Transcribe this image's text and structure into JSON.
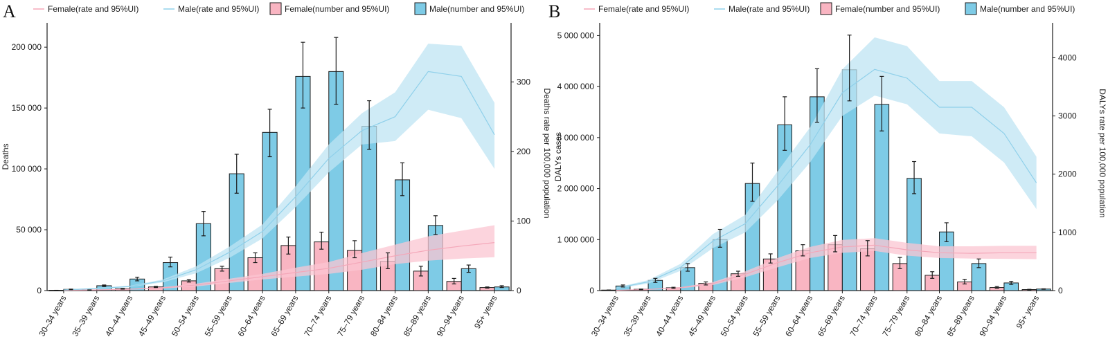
{
  "legend": [
    {
      "label": "Female(rate and 95%UI)",
      "kind": "line",
      "color": "#f4a7b9"
    },
    {
      "label": "Male(rate and 95%UI)",
      "kind": "line",
      "color": "#8fd0ea"
    },
    {
      "label": "Female(number and 95%UI)",
      "kind": "bar",
      "color": "#f9b5c2"
    },
    {
      "label": "Male(number and 95%UI)",
      "kind": "bar",
      "color": "#7ecbe6"
    }
  ],
  "colors": {
    "female_bar": "#f9b5c2",
    "male_bar": "#7ecbe6",
    "female_line": "#f4a7b9",
    "male_line": "#8fd0ea",
    "female_band": "#fbc6d2",
    "male_band": "#bfe4f3"
  },
  "chart_data": [
    {
      "panel": "A",
      "type": "bar",
      "categories": [
        "30–34 years",
        "35–39 years",
        "40–44 years",
        "45–49 years",
        "50–54 years",
        "55–59 years",
        "60–64 years",
        "65–69 years",
        "70–74 years",
        "75–79 years",
        "80–84 years",
        "85–89 years",
        "90–94 years",
        "95+ years"
      ],
      "ylabel": "Deaths",
      "y2label": "Deaths rate per 100,000 population",
      "ylim": [
        0,
        220000
      ],
      "yticks": [
        0,
        50000,
        100000,
        150000,
        200000
      ],
      "ytick_labels": [
        "0",
        "50 000",
        "100 000",
        "150 000",
        "200 000"
      ],
      "y2lim": [
        0,
        385
      ],
      "y2ticks": [
        0,
        100,
        200,
        300
      ],
      "y2tick_labels": [
        "0",
        "100",
        "200",
        "300"
      ],
      "series": [
        {
          "name": "Female(number and 95%UI)",
          "kind": "bar",
          "values": [
            200,
            500,
            1500,
            3000,
            8000,
            18000,
            27000,
            37000,
            40000,
            33000,
            24000,
            16000,
            7500,
            2500
          ],
          "lower": [
            150,
            400,
            1200,
            2500,
            7000,
            16000,
            23000,
            30000,
            34000,
            27000,
            18000,
            12000,
            5500,
            2000
          ],
          "upper": [
            250,
            600,
            1800,
            3500,
            9000,
            20000,
            31000,
            44000,
            48000,
            41000,
            31000,
            20000,
            10000,
            3000
          ]
        },
        {
          "name": "Male(number and 95%UI)",
          "kind": "bar",
          "values": [
            1000,
            4000,
            9500,
            23000,
            55000,
            96000,
            130000,
            176000,
            180000,
            135000,
            91000,
            53500,
            18000,
            3000
          ],
          "lower": [
            800,
            3300,
            8000,
            19500,
            45000,
            80000,
            110000,
            150000,
            153000,
            116000,
            78000,
            46000,
            15000,
            2500
          ],
          "upper": [
            1200,
            4600,
            11000,
            27500,
            65000,
            112000,
            149000,
            204000,
            208000,
            156000,
            105000,
            61500,
            21000,
            4000
          ]
        },
        {
          "name": "Female(rate and 95%UI)",
          "kind": "line",
          "values": [
            0.5,
            1,
            2,
            4,
            8,
            14,
            20,
            26,
            32,
            41,
            50,
            58,
            64,
            69
          ],
          "lower": [
            0.3,
            0.6,
            1.5,
            3,
            6,
            11,
            16,
            20,
            24,
            30,
            38,
            43,
            46,
            48
          ],
          "upper": [
            0.7,
            1.4,
            2.5,
            5,
            10,
            17,
            24,
            33,
            41,
            54,
            66,
            78,
            86,
            94
          ]
        },
        {
          "name": "Male(rate and 95%UI)",
          "kind": "line",
          "values": [
            1,
            3,
            6,
            14,
            30,
            55,
            85,
            135,
            190,
            230,
            250,
            315,
            308,
            224
          ],
          "lower": [
            0.5,
            2,
            5,
            12,
            25,
            47,
            75,
            120,
            170,
            210,
            215,
            260,
            248,
            175
          ],
          "upper": [
            1.5,
            4,
            7,
            16,
            35,
            63,
            95,
            150,
            210,
            255,
            285,
            355,
            352,
            270
          ]
        }
      ]
    },
    {
      "panel": "B",
      "type": "bar",
      "categories": [
        "30–34 years",
        "35–39 years",
        "40–44 years",
        "45–49 years",
        "50–54 years",
        "55–59 years",
        "60–64 years",
        "65–69 years",
        "70–74 years",
        "75–79 years",
        "80–84 years",
        "85–89 years",
        "90–94 years",
        "95+ years"
      ],
      "ylabel": "DALYs cases",
      "y2label": "DALYs rate per 100,000 population",
      "ylim": [
        0,
        5250000
      ],
      "yticks": [
        0,
        1000000,
        2000000,
        3000000,
        4000000,
        5000000
      ],
      "ytick_labels": [
        "0",
        "1 000 000",
        "2 000 000",
        "3 000 000",
        "4 000 000",
        "5 000 000"
      ],
      "y2lim": [
        0,
        4600
      ],
      "y2ticks": [
        0,
        1000,
        2000,
        3000,
        4000
      ],
      "y2tick_labels": [
        "0",
        "1000",
        "2000",
        "3000",
        "4000"
      ],
      "series": [
        {
          "name": "Female(number and 95%UI)",
          "kind": "bar",
          "values": [
            10000,
            25000,
            55000,
            140000,
            330000,
            620000,
            780000,
            900000,
            820000,
            530000,
            300000,
            170000,
            60000,
            20000
          ],
          "lower": [
            8000,
            20000,
            45000,
            110000,
            280000,
            540000,
            680000,
            760000,
            680000,
            430000,
            240000,
            130000,
            45000,
            15000
          ],
          "upper": [
            12000,
            30000,
            65000,
            170000,
            380000,
            720000,
            900000,
            1080000,
            980000,
            650000,
            370000,
            220000,
            80000,
            25000
          ]
        },
        {
          "name": "Male(number and 95%UI)",
          "kind": "bar",
          "values": [
            90000,
            200000,
            450000,
            1000000,
            2100000,
            3250000,
            3800000,
            4330000,
            3650000,
            2200000,
            1150000,
            530000,
            150000,
            30000
          ],
          "lower": [
            70000,
            160000,
            380000,
            850000,
            1750000,
            2750000,
            3300000,
            3720000,
            3130000,
            1900000,
            960000,
            450000,
            120000,
            25000
          ],
          "upper": [
            110000,
            240000,
            530000,
            1200000,
            2500000,
            3800000,
            4350000,
            5010000,
            4200000,
            2530000,
            1330000,
            620000,
            180000,
            35000
          ]
        },
        {
          "name": "Female(rate and 95%UI)",
          "kind": "line",
          "values": [
            5,
            20,
            50,
            120,
            280,
            480,
            650,
            750,
            780,
            700,
            650,
            640,
            650,
            650
          ],
          "lower": [
            4,
            15,
            40,
            95,
            230,
            400,
            560,
            650,
            680,
            600,
            560,
            550,
            545,
            540
          ],
          "upper": [
            6,
            25,
            60,
            145,
            330,
            560,
            750,
            870,
            900,
            820,
            760,
            760,
            770,
            770
          ]
        },
        {
          "name": "Male(rate and 95%UI)",
          "kind": "line",
          "values": [
            40,
            150,
            400,
            850,
            1150,
            1800,
            2500,
            3400,
            3800,
            3650,
            3150,
            3150,
            2700,
            1850
          ],
          "lower": [
            30,
            120,
            340,
            730,
            1000,
            1550,
            2200,
            3000,
            3350,
            3200,
            2700,
            2650,
            2200,
            1400
          ],
          "upper": [
            50,
            180,
            460,
            970,
            1300,
            2050,
            2800,
            3800,
            4350,
            4200,
            3600,
            3600,
            3150,
            2300
          ]
        }
      ]
    }
  ],
  "panel_letters": [
    "A",
    "B"
  ]
}
